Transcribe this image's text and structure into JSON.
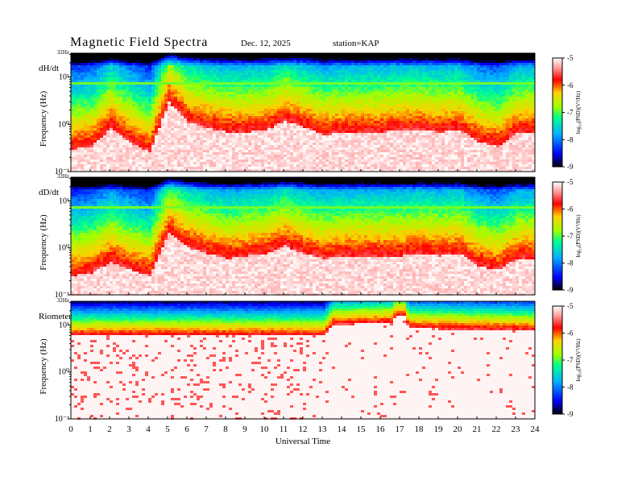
{
  "header": {
    "title": "Magnetic  Field  Spectra",
    "date": "Dec. 12, 2025",
    "station": "station=KAP"
  },
  "chart_data": [
    {
      "type": "heatmap",
      "panel_label": "dH/dt",
      "ylabel": "Frequency  (Hz)",
      "y_scale": "log",
      "ylim": [
        0.1,
        32
      ],
      "y_top_label": "32Hz",
      "y_ticks": [
        {
          "value": 10,
          "label": "10¹"
        },
        {
          "value": 1,
          "label": "10⁰"
        },
        {
          "value": 0.1,
          "label": "10⁻¹"
        }
      ],
      "xlim": [
        0,
        24
      ],
      "colorbar": {
        "ticks": [
          -5,
          -6,
          -7,
          -8,
          -9
        ],
        "range": [
          -9,
          -5
        ],
        "label": "log₁₀(PSD)(V²/Hz)"
      },
      "cutoff_hours": [
        0,
        1,
        2,
        3,
        4,
        5,
        6,
        7,
        8,
        9,
        10,
        11,
        12,
        13,
        14,
        15,
        16,
        17,
        18,
        19,
        20,
        21,
        22,
        23,
        24
      ],
      "cutoff_hz": [
        0.35,
        0.4,
        1.0,
        0.5,
        0.3,
        3.5,
        1.3,
        1.0,
        0.8,
        0.8,
        0.9,
        1.4,
        1.0,
        0.7,
        0.8,
        0.8,
        0.8,
        0.9,
        0.9,
        0.8,
        0.9,
        0.5,
        0.4,
        0.8,
        0.8
      ],
      "line_hz": 8
    },
    {
      "type": "heatmap",
      "panel_label": "dD/dt",
      "ylabel": "Frequency  (Hz)",
      "y_scale": "log",
      "ylim": [
        0.1,
        32
      ],
      "y_top_label": "32Hz",
      "y_ticks": [
        {
          "value": 10,
          "label": "10¹"
        },
        {
          "value": 1,
          "label": "10⁰"
        },
        {
          "value": 0.1,
          "label": "10⁻¹"
        }
      ],
      "xlim": [
        0,
        24
      ],
      "colorbar": {
        "ticks": [
          -5,
          -6,
          -7,
          -8,
          -9
        ],
        "range": [
          -9,
          -5
        ],
        "label": "log₁₀(PSD)(V²/Hz)"
      },
      "cutoff_hours": [
        0,
        1,
        2,
        3,
        4,
        5,
        6,
        7,
        8,
        9,
        10,
        11,
        12,
        13,
        14,
        15,
        16,
        17,
        18,
        19,
        20,
        21,
        22,
        23,
        24
      ],
      "cutoff_hz": [
        0.3,
        0.35,
        0.6,
        0.4,
        0.3,
        2.5,
        1.2,
        0.9,
        0.7,
        0.8,
        0.9,
        1.3,
        0.9,
        0.7,
        0.8,
        0.8,
        0.8,
        0.8,
        0.9,
        0.8,
        0.9,
        0.5,
        0.4,
        0.7,
        0.7
      ],
      "line_hz": 8
    },
    {
      "type": "heatmap",
      "panel_label": "Riometer",
      "ylabel": "Frequency  (Hz)",
      "y_scale": "log",
      "ylim": [
        0.1,
        32
      ],
      "y_top_label": "32Hz",
      "y_ticks": [
        {
          "value": 10,
          "label": "10¹"
        },
        {
          "value": 1,
          "label": "10⁰"
        },
        {
          "value": 0.1,
          "label": "10⁻¹"
        }
      ],
      "xlim": [
        0,
        24
      ],
      "xlabel": "Universal Time",
      "x_ticks": [
        "0",
        "1",
        "2",
        "3",
        "4",
        "5",
        "6",
        "7",
        "8",
        "9",
        "10",
        "11",
        "12",
        "13",
        "14",
        "15",
        "16",
        "17",
        "18",
        "19",
        "20",
        "21",
        "22",
        "23",
        "24"
      ],
      "colorbar": {
        "ticks": [
          -5,
          -6,
          -7,
          -8,
          -9
        ],
        "range": [
          -9,
          -5
        ],
        "label": "log₁₀(PSD)(V²/Hz)"
      },
      "cutoff_hours": [
        0,
        13,
        13.5,
        16.5,
        16.7,
        17.2,
        17.4,
        24
      ],
      "cutoff_hz": [
        7,
        7,
        12,
        13,
        18,
        18,
        10,
        9
      ]
    }
  ]
}
